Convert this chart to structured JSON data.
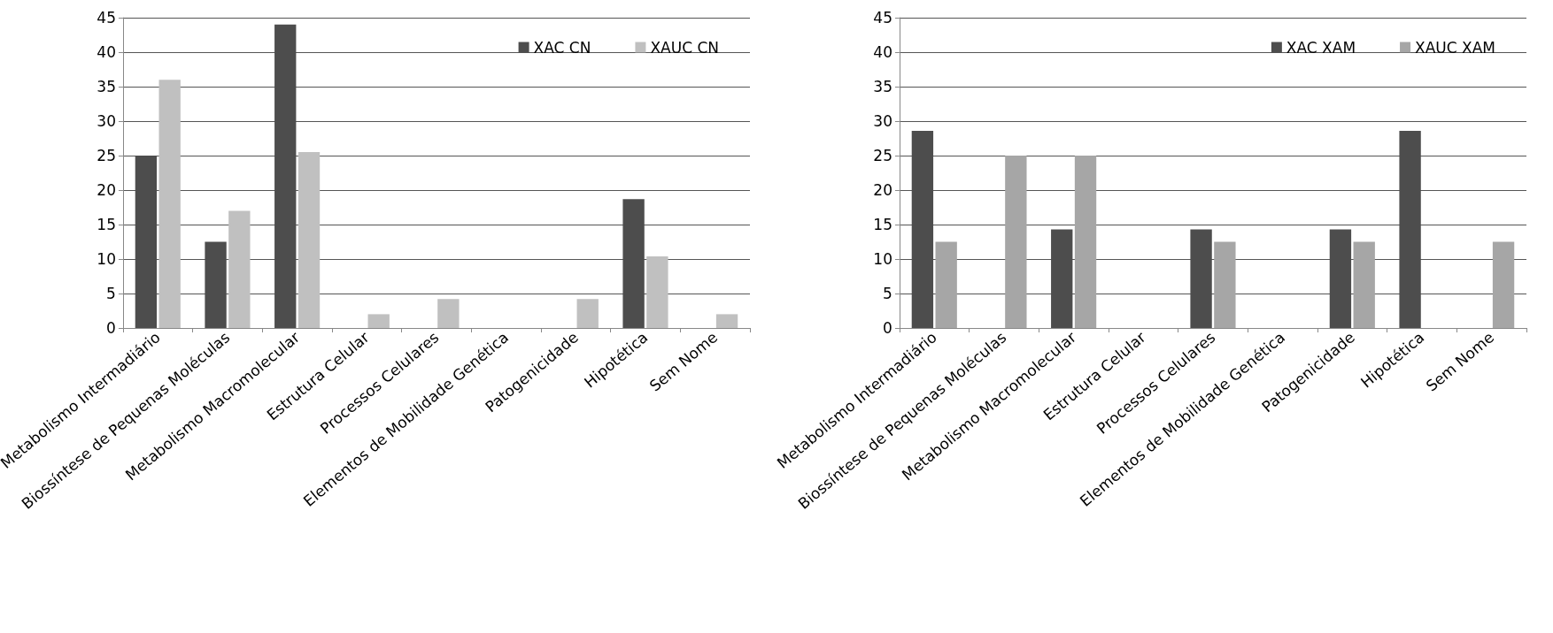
{
  "chart_data": [
    {
      "type": "bar",
      "categories": [
        "Metabolismo Intermadiário",
        "Biossíntese de Pequenas Moléculas",
        "Metabolismo Macromolecular",
        "Estrutura Celular",
        "Processos Celulares",
        "Elementos de Mobilidade Genética",
        "Patogenicidade",
        "Hipotética",
        "Sem Nome"
      ],
      "series": [
        {
          "name": "XAC CN",
          "color": "#4d4d4d",
          "values": [
            25,
            12.5,
            44,
            0,
            0,
            0,
            0,
            18.7,
            0
          ]
        },
        {
          "name": "XAUC CN",
          "color": "#c0c0c0",
          "values": [
            36,
            17,
            25.5,
            2,
            4.2,
            0,
            4.2,
            10.4,
            2
          ]
        }
      ],
      "ylim": [
        0,
        45
      ],
      "yticks": [
        0,
        5,
        10,
        15,
        20,
        25,
        30,
        35,
        40,
        45
      ],
      "grid": "y",
      "legend": "top right"
    },
    {
      "type": "bar",
      "categories": [
        "Metabolismo Intermadiário",
        "Biossíntese de Pequenas Moléculas",
        "Metabolismo Macromolecular",
        "Estrutura Celular",
        "Processos Celulares",
        "Elementos de Mobilidade Genética",
        "Patogenicidade",
        "Hipotética",
        "Sem Nome"
      ],
      "series": [
        {
          "name": "XAC XAM",
          "color": "#4d4d4d",
          "values": [
            28.6,
            0,
            14.3,
            0,
            14.3,
            0,
            14.3,
            28.6,
            0
          ]
        },
        {
          "name": "XAUC XAM",
          "color": "#a6a6a6",
          "values": [
            12.5,
            25,
            25,
            0,
            12.5,
            0,
            12.5,
            0,
            12.5
          ]
        }
      ],
      "ylim": [
        0,
        45
      ],
      "yticks": [
        0,
        5,
        10,
        15,
        20,
        25,
        30,
        35,
        40,
        45
      ],
      "grid": "y",
      "legend": "top right"
    }
  ]
}
